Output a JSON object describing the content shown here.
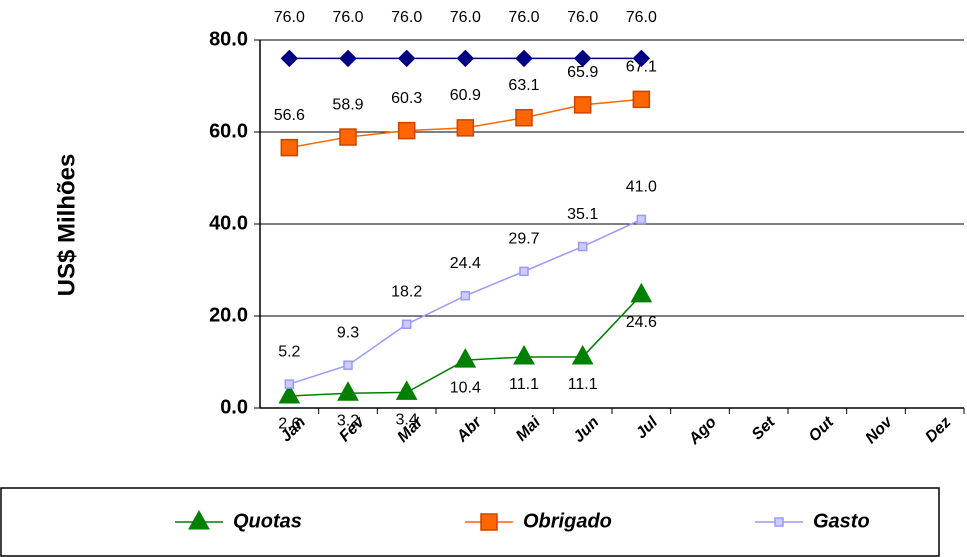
{
  "chart_data": {
    "type": "line",
    "y_label": "US$ Milhões",
    "categories": [
      "Jan",
      "Fev",
      "Mar",
      "Abr",
      "Mai",
      "Jun",
      "Jul",
      "Ago",
      "Set",
      "Out",
      "Nov",
      "Dez"
    ],
    "ylim": [
      0,
      80
    ],
    "yticks": [
      {
        "value": 0,
        "label": "0.0"
      },
      {
        "value": 20,
        "label": "20.0"
      },
      {
        "value": 40,
        "label": "40.0"
      },
      {
        "value": 60,
        "label": "60.0"
      },
      {
        "value": 80,
        "label": "80.0"
      }
    ],
    "grid": true,
    "legend": "bottom",
    "series": [
      {
        "name": "Quotas",
        "color": "#008000",
        "marker": "triangle",
        "label_position": "below",
        "values": [
          2.6,
          3.2,
          3.4,
          10.4,
          11.1,
          11.1,
          24.6,
          null,
          null,
          null,
          null,
          null
        ],
        "value_labels": [
          "2.6",
          "3.2",
          "3.4",
          "10.4",
          "11.1",
          "11.1",
          "24.6",
          null,
          null,
          null,
          null,
          null
        ]
      },
      {
        "name": "Obrigado",
        "color": "#ff6600",
        "marker": "square",
        "label_position": "above",
        "values": [
          56.6,
          58.9,
          60.3,
          60.9,
          63.1,
          65.9,
          67.1,
          null,
          null,
          null,
          null,
          null
        ],
        "value_labels": [
          "56.6",
          "58.9",
          "60.3",
          "60.9",
          "63.1",
          "65.9",
          "67.1",
          null,
          null,
          null,
          null,
          null
        ]
      },
      {
        "name": "Gasto",
        "color": "#9999ff",
        "marker": "small-square",
        "label_position": "above",
        "values": [
          5.2,
          9.3,
          18.2,
          24.4,
          29.7,
          35.1,
          41.0,
          null,
          null,
          null,
          null,
          null
        ],
        "value_labels": [
          "5.2",
          "9.3",
          "18.2",
          "24.4",
          "29.7",
          "35.1",
          "41.0",
          null,
          null,
          null,
          null,
          null
        ]
      },
      {
        "color": "#000080",
        "marker": "diamond",
        "label_position": "top",
        "values": [
          76,
          76,
          76,
          76,
          76,
          76,
          76,
          null,
          null,
          null,
          null,
          null
        ],
        "value_labels": [
          "76.0",
          "76.0",
          "76.0",
          "76.0",
          "76.0",
          "76.0",
          "76.0",
          null,
          null,
          null,
          null,
          null
        ]
      }
    ]
  }
}
